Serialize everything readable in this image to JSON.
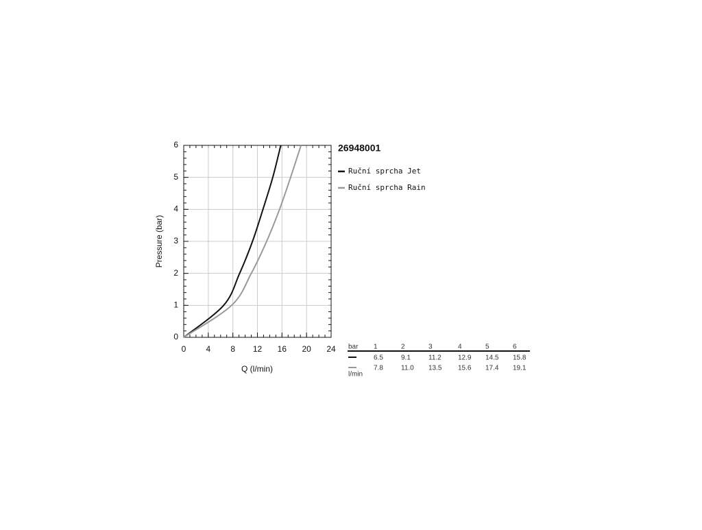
{
  "chart_data": {
    "type": "line",
    "title": "26948001",
    "x_label": "Q (l/min)",
    "y_label": "Pressure (bar)",
    "xlim": [
      0,
      24
    ],
    "xticks": [
      0,
      4,
      8,
      12,
      16,
      20,
      24
    ],
    "ylim": [
      0,
      6
    ],
    "yticks": [
      0,
      1,
      2,
      3,
      4,
      5,
      6
    ],
    "grid": true,
    "series": [
      {
        "name": "Ruční sprcha Jet",
        "color": "#111111",
        "x": [
          0,
          6.5,
          9.1,
          11.2,
          12.9,
          14.5,
          15.8
        ],
        "values": [
          0,
          1,
          2,
          3,
          4,
          5,
          6
        ]
      },
      {
        "name": "Ruční sprcha Rain",
        "color": "#999999",
        "x": [
          0,
          7.8,
          11.0,
          13.5,
          15.6,
          17.4,
          19.1
        ],
        "values": [
          0,
          1,
          2,
          3,
          4,
          5,
          6
        ]
      }
    ],
    "table": {
      "header_label": "bar",
      "unit_label": "l/min",
      "pressures": [
        1,
        2,
        3,
        4,
        5,
        6
      ],
      "rows": [
        {
          "values": [
            6.5,
            9.1,
            11.2,
            12.9,
            14.5,
            15.8
          ],
          "value_labels": [
            "6.5",
            "9.1",
            "11.2",
            "12.9",
            "14.5",
            "15.8"
          ]
        },
        {
          "values": [
            7.8,
            11.0,
            13.5,
            15.6,
            17.4,
            19.1
          ],
          "value_labels": [
            "7.8",
            "11.0",
            "13.5",
            "15.6",
            "17.4",
            "19.1"
          ]
        }
      ]
    }
  }
}
